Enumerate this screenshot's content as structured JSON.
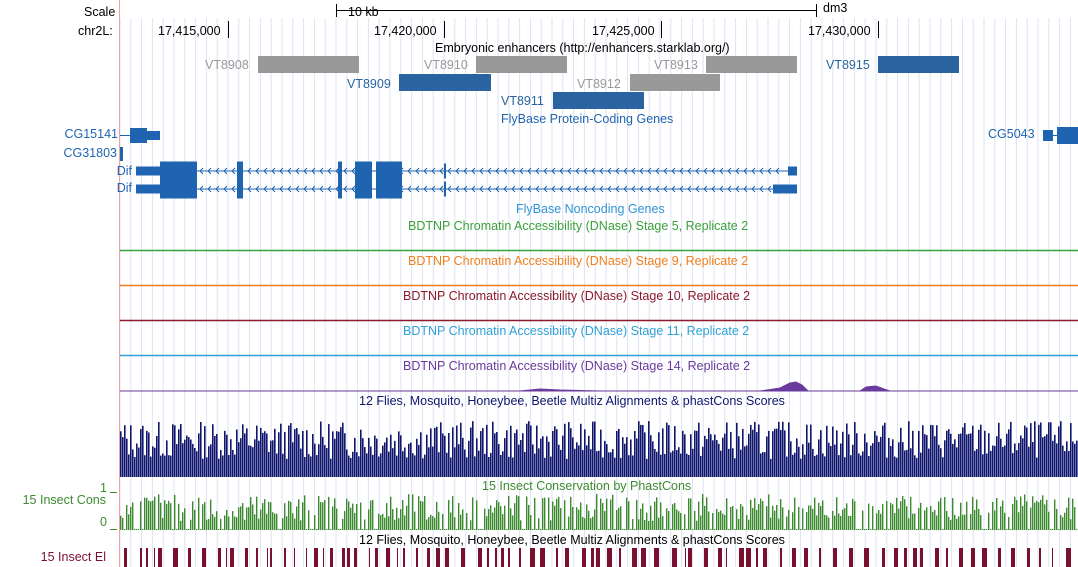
{
  "assembly": "dm3",
  "ruler": {
    "scale_label": "Scale",
    "scale_value": "10 kb",
    "chrom_label": "chr2L:",
    "ticks": [
      "17,415,000",
      "17,420,000",
      "17,425,000",
      "17,430,000"
    ]
  },
  "enhancers": {
    "title": "Embryonic enhancers (http://enhancers.starklab.org/)",
    "items": [
      {
        "name": "VT8908",
        "color": "#999999"
      },
      {
        "name": "VT8910",
        "color": "#999999"
      },
      {
        "name": "VT8913",
        "color": "#999999"
      },
      {
        "name": "VT8915",
        "color": "#2a64a0"
      },
      {
        "name": "VT8909",
        "color": "#2a64a0"
      },
      {
        "name": "VT8912",
        "color": "#999999"
      },
      {
        "name": "VT8911",
        "color": "#2a64a0"
      }
    ]
  },
  "genes": {
    "title": "FlyBase Protein-Coding Genes",
    "color": "#1f64b0",
    "items": [
      "CG15141",
      "CG31803",
      "Dif",
      "Dif",
      "CG5043"
    ]
  },
  "noncoding": {
    "title": "FlyBase Noncoding Genes"
  },
  "dnase_tracks": [
    {
      "title": "BDTNP Chromatin Accessibility (DNase) Stage 5, Replicate 2",
      "color": "#3aa13a"
    },
    {
      "title": "BDTNP Chromatin Accessibility (DNase) Stage 9, Replicate 2",
      "color": "#f07f1e"
    },
    {
      "title": "BDTNP Chromatin Accessibility (DNase) Stage 10, Replicate 2",
      "color": "#8b1a2c"
    },
    {
      "title": "BDTNP Chromatin Accessibility (DNase) Stage 11, Replicate 2",
      "color": "#2fa0d8"
    },
    {
      "title": "BDTNP Chromatin Accessibility (DNase) Stage 14, Replicate 2",
      "color": "#6a3a9c"
    }
  ],
  "multiz": {
    "title": "12 Flies, Mosquito, Honeybee, Beetle Multiz Alignments & phastCons Scores",
    "color": "#10166e"
  },
  "cons": {
    "title": "15 Insect Conservation by PhastCons",
    "label": "15 Insect Cons",
    "y_max": "1",
    "y_min": "0",
    "color": "#3c8a2e"
  },
  "elements": {
    "title": "12 Flies, Mosquito, Honeybee, Beetle Multiz Alignments & phastCons Scores",
    "label": "15 Insect El",
    "color": "#7a1030"
  }
}
